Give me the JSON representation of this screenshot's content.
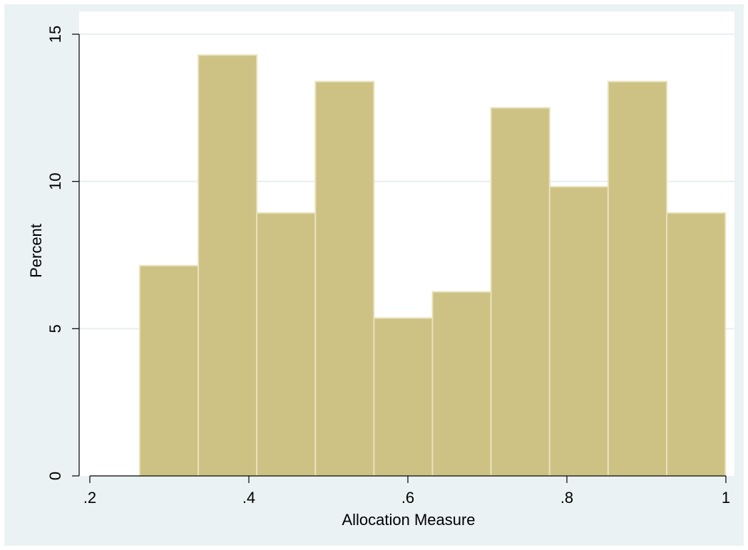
{
  "chart_data": {
    "type": "bar",
    "subtype": "histogram",
    "title": "",
    "xlabel": "Allocation Measure",
    "ylabel": "Percent",
    "xlim": [
      0.2,
      1.0
    ],
    "ylim": [
      0,
      15
    ],
    "x_ticks": [
      0.2,
      0.4,
      0.6,
      0.8,
      1.0
    ],
    "x_tick_labels": [
      ".2",
      ".4",
      ".6",
      ".8",
      "1"
    ],
    "y_ticks": [
      0,
      5,
      10,
      15
    ],
    "y_tick_labels": [
      "0",
      "5",
      "10",
      "15"
    ],
    "grid": "horizontal",
    "bins": [
      {
        "start": 0.2627,
        "end": 0.3364,
        "value": 7.14
      },
      {
        "start": 0.3364,
        "end": 0.41,
        "value": 14.29
      },
      {
        "start": 0.41,
        "end": 0.4837,
        "value": 8.93
      },
      {
        "start": 0.4837,
        "end": 0.5573,
        "value": 13.39
      },
      {
        "start": 0.5573,
        "end": 0.631,
        "value": 5.36
      },
      {
        "start": 0.631,
        "end": 0.7046,
        "value": 6.25
      },
      {
        "start": 0.7046,
        "end": 0.7783,
        "value": 12.5
      },
      {
        "start": 0.7783,
        "end": 0.8519,
        "value": 9.82
      },
      {
        "start": 0.8519,
        "end": 0.9256,
        "value": 13.39
      },
      {
        "start": 0.9256,
        "end": 0.9993,
        "value": 8.93
      }
    ],
    "colors": {
      "bar_fill": "#cdc284",
      "bar_stroke": "#e8e2bb",
      "plot_background": "#ffffff",
      "outer_background": "#eaf2f3",
      "grid": "#e8eff0",
      "axis": "#000000"
    }
  }
}
